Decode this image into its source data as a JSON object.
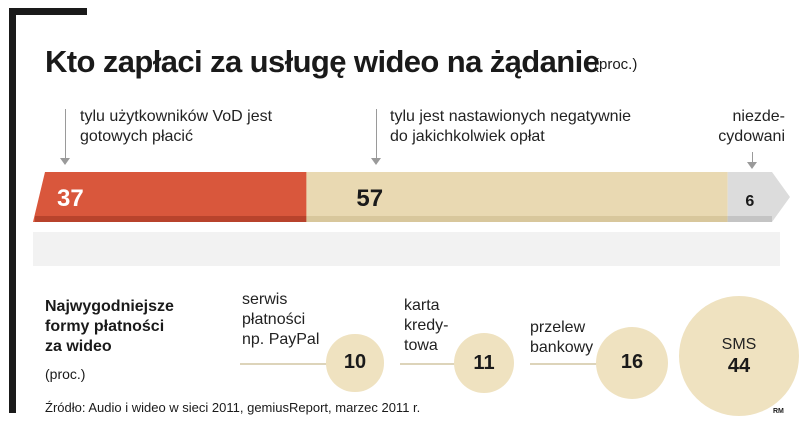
{
  "title": "Kto zapłaci za usługę wideo na żądanie",
  "title_unit": "(proc.)",
  "annotations": {
    "pay": "tylu użytkowników VoD jest gotowych płacić",
    "negative": "tylu jest nastawionych negatywnie do jakichkolwiek opłat",
    "undecided": "niezde-cydowani"
  },
  "payment": {
    "title_lines": [
      "Najwygodniejsze",
      "formy płatności",
      "za wideo"
    ],
    "unit": "(proc.)"
  },
  "source": "Źródło: Audio i wideo w sieci 2011, gemiusReport, marzec 2011 r.",
  "credit": "RM",
  "colors": {
    "pay": "#d9573c",
    "negative": "#e9d9b2",
    "undecided": "#dcdcdc",
    "bubble": "#efe2c0"
  },
  "chart_data": [
    {
      "type": "bar",
      "orientation": "horizontal-stacked",
      "title": "Kto zapłaci za usługę wideo na żądanie",
      "unit": "proc.",
      "categories": [
        "tylu użytkowników VoD jest gotowych płacić",
        "tylu jest nastawionych negatywnie do jakichkolwiek opłat",
        "niezdecydowani"
      ],
      "values": [
        37,
        57,
        6
      ],
      "labels": [
        "37",
        "57",
        "6"
      ]
    },
    {
      "type": "bubble",
      "title": "Najwygodniejsze formy płatności za wideo",
      "unit": "proc.",
      "categories": [
        "serwis płatności np. PayPal",
        "karta kredytowa",
        "przelew bankowy",
        "SMS"
      ],
      "values": [
        10,
        11,
        16,
        44
      ],
      "labels": [
        "10",
        "11",
        "16",
        "44"
      ]
    }
  ]
}
